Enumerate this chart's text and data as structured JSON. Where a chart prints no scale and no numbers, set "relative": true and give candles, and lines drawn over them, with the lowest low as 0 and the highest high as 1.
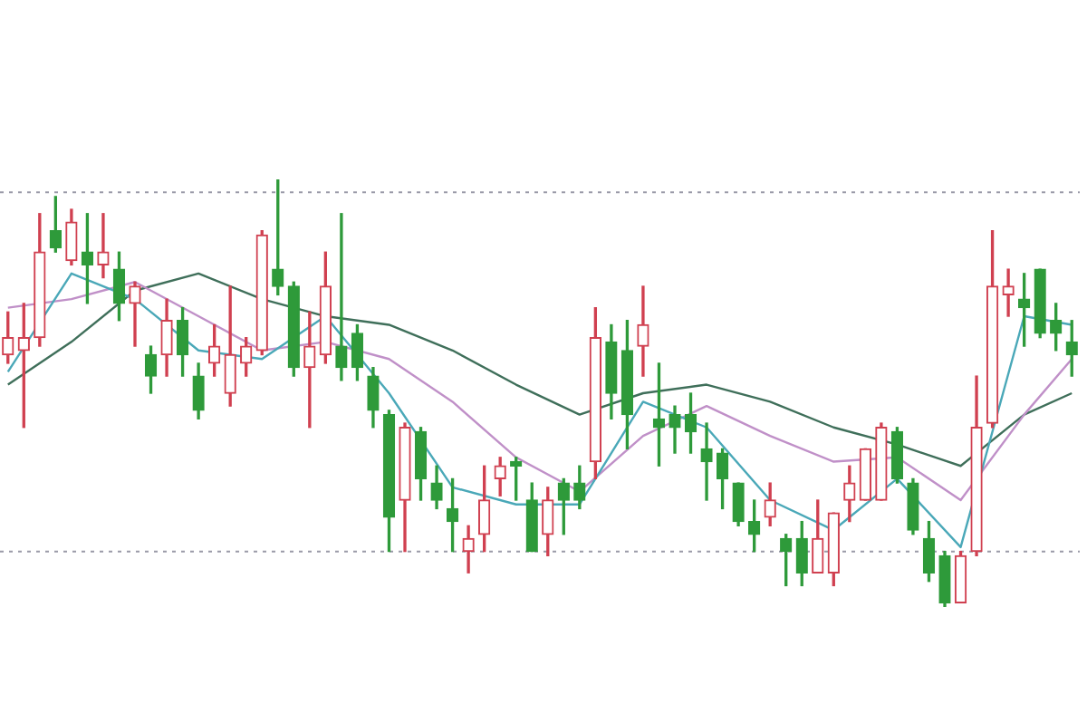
{
  "chart_data": {
    "type": "candlestick",
    "relative": true,
    "categories": [
      null,
      null,
      null,
      null,
      null,
      null,
      null,
      null,
      null,
      null,
      null,
      null,
      null,
      null,
      null,
      null,
      null,
      null,
      null,
      null,
      null,
      null,
      null,
      null,
      null,
      null,
      null,
      null,
      null,
      null,
      null,
      null,
      null,
      null,
      null,
      null,
      null,
      null,
      null,
      null,
      null,
      null,
      null,
      null,
      null,
      null,
      null,
      null,
      null,
      null,
      null,
      null,
      null,
      null,
      null,
      null,
      null,
      null,
      null,
      null,
      null,
      null,
      null,
      null,
      null,
      null,
      null,
      null
    ],
    "ohlc": [
      [
        0.59,
        0.69,
        0.57,
        0.63
      ],
      [
        0.6,
        0.71,
        0.42,
        0.63
      ],
      [
        0.63,
        0.92,
        0.61,
        0.83
      ],
      [
        0.88,
        0.96,
        0.83,
        0.84
      ],
      [
        0.81,
        0.93,
        0.8,
        0.9
      ],
      [
        0.83,
        0.92,
        0.71,
        0.8
      ],
      [
        0.8,
        0.92,
        0.77,
        0.83
      ],
      [
        0.79,
        0.83,
        0.67,
        0.71
      ],
      [
        0.71,
        0.76,
        0.61,
        0.75
      ],
      [
        0.59,
        0.61,
        0.5,
        0.54
      ],
      [
        0.59,
        0.72,
        0.54,
        0.67
      ],
      [
        0.67,
        0.7,
        0.54,
        0.59
      ],
      [
        0.54,
        0.57,
        0.44,
        0.46
      ],
      [
        0.57,
        0.66,
        0.54,
        0.61
      ],
      [
        0.5,
        0.75,
        0.47,
        0.59
      ],
      [
        0.57,
        0.63,
        0.54,
        0.61
      ],
      [
        0.6,
        0.88,
        0.59,
        0.87
      ],
      [
        0.79,
        1,
        0.73,
        0.75
      ],
      [
        0.75,
        0.76,
        0.54,
        0.56
      ],
      [
        0.56,
        0.69,
        0.42,
        0.61
      ],
      [
        0.59,
        0.83,
        0.57,
        0.75
      ],
      [
        0.61,
        0.92,
        0.53,
        0.56
      ],
      [
        0.64,
        0.66,
        0.53,
        0.56
      ],
      [
        0.54,
        0.56,
        0.42,
        0.46
      ],
      [
        0.45,
        0.46,
        0.13,
        0.21
      ],
      [
        0.25,
        0.43,
        0.13,
        0.42
      ],
      [
        0.41,
        0.42,
        0.25,
        0.3
      ],
      [
        0.29,
        0.33,
        0.23,
        0.25
      ],
      [
        0.23,
        0.3,
        0.13,
        0.2
      ],
      [
        0.13,
        0.19,
        0.08,
        0.16
      ],
      [
        0.17,
        0.33,
        0.13,
        0.25
      ],
      [
        0.3,
        0.35,
        0.26,
        0.33
      ],
      [
        0.34,
        0.35,
        0.25,
        0.33
      ],
      [
        0.25,
        0.29,
        0.13,
        0.13
      ],
      [
        0.17,
        0.28,
        0.12,
        0.25
      ],
      [
        0.29,
        0.3,
        0.17,
        0.25
      ],
      [
        0.29,
        0.33,
        0.23,
        0.25
      ],
      [
        0.34,
        0.7,
        0.3,
        0.63
      ],
      [
        0.62,
        0.66,
        0.44,
        0.5
      ],
      [
        0.6,
        0.67,
        0.37,
        0.45
      ],
      [
        0.61,
        0.75,
        0.54,
        0.66
      ],
      [
        0.44,
        0.57,
        0.33,
        0.42
      ],
      [
        0.45,
        0.47,
        0.36,
        0.42
      ],
      [
        0.45,
        0.5,
        0.36,
        0.41
      ],
      [
        0.37,
        0.43,
        0.25,
        0.34
      ],
      [
        0.36,
        0.37,
        0.23,
        0.3
      ],
      [
        0.29,
        0.29,
        0.19,
        0.2
      ],
      [
        0.2,
        0.25,
        0.13,
        0.17
      ],
      [
        0.21,
        0.29,
        0.19,
        0.25
      ],
      [
        0.16,
        0.17,
        0.05,
        0.13
      ],
      [
        0.16,
        0.2,
        0.05,
        0.08
      ],
      [
        0.08,
        0.25,
        0.08,
        0.16
      ],
      [
        0.08,
        0.22,
        0.05,
        0.22
      ],
      [
        0.25,
        0.33,
        0.2,
        0.29
      ],
      [
        0.25,
        0.37,
        0.25,
        0.37
      ],
      [
        0.25,
        0.43,
        0.25,
        0.42
      ],
      [
        0.41,
        0.42,
        0.29,
        0.3
      ],
      [
        0.29,
        0.3,
        0.17,
        0.18
      ],
      [
        0.16,
        0.2,
        0.06,
        0.08
      ],
      [
        0.12,
        0.13,
        0,
        0.01
      ],
      [
        0.01,
        0.13,
        0.01,
        0.12
      ],
      [
        0.13,
        0.54,
        0.12,
        0.42
      ],
      [
        0.43,
        0.88,
        0.42,
        0.75
      ],
      [
        0.73,
        0.79,
        0.68,
        0.75
      ],
      [
        0.72,
        0.78,
        0.61,
        0.7
      ],
      [
        0.79,
        0.79,
        0.63,
        0.64
      ],
      [
        0.67,
        0.71,
        0.6,
        0.64
      ],
      [
        0.62,
        0.67,
        0.54,
        0.59
      ]
    ],
    "colors": [
      "#d04050",
      "#d04050",
      "#d04050",
      "#2e9a3a",
      "#d04050",
      "#2e9a3a",
      "#d04050",
      "#2e9a3a",
      "#d04050",
      "#2e9a3a",
      "#d04050",
      "#2e9a3a",
      "#2e9a3a",
      "#d04050",
      "#d04050",
      "#d04050",
      "#d04050",
      "#2e9a3a",
      "#2e9a3a",
      "#d04050",
      "#d04050",
      "#2e9a3a",
      "#2e9a3a",
      "#2e9a3a",
      "#2e9a3a",
      "#d04050",
      "#2e9a3a",
      "#2e9a3a",
      "#2e9a3a",
      "#d04050",
      "#d04050",
      "#d04050",
      "#2e9a3a",
      "#2e9a3a",
      "#d04050",
      "#2e9a3a",
      "#2e9a3a",
      "#d04050",
      "#2e9a3a",
      "#2e9a3a",
      "#d04050",
      "#2e9a3a",
      "#2e9a3a",
      "#2e9a3a",
      "#2e9a3a",
      "#2e9a3a",
      "#2e9a3a",
      "#2e9a3a",
      "#d04050",
      "#2e9a3a",
      "#2e9a3a",
      "#d04050",
      "#d04050",
      "#d04050",
      "#d04050",
      "#d04050",
      "#2e9a3a",
      "#2e9a3a",
      "#2e9a3a",
      "#2e9a3a",
      "#d04050",
      "#d04050",
      "#d04050",
      "#d04050",
      "#2e9a3a",
      "#2e9a3a",
      "#2e9a3a",
      "#2e9a3a"
    ],
    "series": [
      {
        "type": "line",
        "color": "#4aa8b8",
        "values": [
          0.55,
          null,
          null,
          null,
          0.78,
          null,
          null,
          null,
          0.72,
          null,
          null,
          null,
          0.6,
          null,
          null,
          null,
          0.58,
          null,
          null,
          null,
          0.68,
          null,
          null,
          null,
          0.5,
          null,
          null,
          null,
          0.28,
          null,
          null,
          null,
          0.24,
          null,
          null,
          null,
          0.24,
          null,
          null,
          null,
          0.48,
          null,
          null,
          null,
          0.42,
          null,
          null,
          null,
          0.25,
          null,
          null,
          null,
          0.18,
          null,
          null,
          null,
          0.3,
          null,
          null,
          null,
          0.14,
          null,
          null,
          null,
          0.68,
          null,
          null,
          0.66
        ]
      },
      {
        "type": "line",
        "color": "#c090c8",
        "values": [
          0.7,
          null,
          null,
          null,
          0.72,
          null,
          null,
          null,
          0.76,
          null,
          null,
          null,
          0.68,
          null,
          null,
          null,
          0.6,
          null,
          null,
          null,
          0.62,
          null,
          null,
          null,
          0.58,
          null,
          null,
          null,
          0.48,
          null,
          null,
          null,
          0.35,
          null,
          null,
          null,
          0.27,
          null,
          null,
          null,
          0.4,
          null,
          null,
          null,
          0.47,
          null,
          null,
          null,
          0.4,
          null,
          null,
          null,
          0.34,
          null,
          null,
          null,
          0.35,
          null,
          null,
          null,
          0.25,
          null,
          null,
          null,
          0.45,
          null,
          null,
          0.58
        ]
      },
      {
        "type": "line",
        "color": "#3f6f5a",
        "values": [
          0.52,
          null,
          null,
          null,
          0.62,
          null,
          null,
          null,
          0.74,
          null,
          null,
          null,
          0.78,
          null,
          null,
          null,
          0.72,
          null,
          null,
          null,
          0.68,
          null,
          null,
          null,
          0.66,
          null,
          null,
          null,
          0.6,
          null,
          null,
          null,
          0.52,
          null,
          null,
          null,
          0.45,
          null,
          null,
          null,
          0.5,
          null,
          null,
          null,
          0.52,
          null,
          null,
          null,
          0.48,
          null,
          null,
          null,
          0.42,
          null,
          null,
          null,
          0.38,
          null,
          null,
          null,
          0.33,
          null,
          null,
          null,
          0.45,
          null,
          null,
          0.5
        ]
      }
    ],
    "ref_lines": [
      {
        "axis": "y",
        "value": 0.97,
        "color": "#9a9aa8",
        "line_style": "dotted"
      },
      {
        "axis": "y",
        "value": 0.13,
        "color": "#9a9aa8",
        "line_style": "dotted"
      }
    ],
    "marker": "none",
    "line_style": "solid",
    "legend": false
  }
}
